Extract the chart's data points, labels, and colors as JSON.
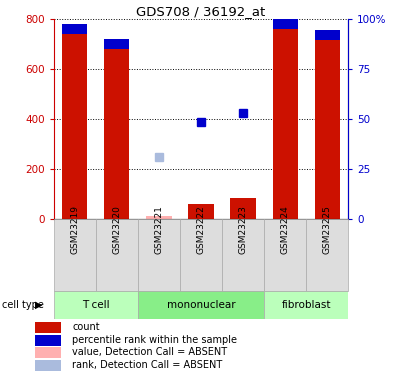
{
  "title": "GDS708 / 36192_at",
  "samples": [
    "GSM23219",
    "GSM23220",
    "GSM23221",
    "GSM23222",
    "GSM23223",
    "GSM23224",
    "GSM23225"
  ],
  "count_values": [
    780,
    720,
    0,
    60,
    85,
    800,
    755
  ],
  "rank_values": [
    710,
    695,
    0,
    0,
    0,
    710,
    710
  ],
  "absent_value_values": [
    0,
    0,
    15,
    0,
    0,
    0,
    0
  ],
  "absent_rank_values": [
    0,
    0,
    250,
    0,
    0,
    0,
    0
  ],
  "blue_dot_values": [
    0,
    0,
    0,
    390,
    425,
    0,
    0
  ],
  "cell_groups": [
    {
      "label": "T cell",
      "indices": [
        0,
        1
      ],
      "color": "#BBFFBB"
    },
    {
      "label": "mononuclear",
      "indices": [
        2,
        3,
        4
      ],
      "color": "#88EE88"
    },
    {
      "label": "fibroblast",
      "indices": [
        5,
        6
      ],
      "color": "#BBFFBB"
    }
  ],
  "ylim_max": 800,
  "y2lim_max": 100,
  "bar_width": 0.6,
  "blue_bar_height": 40,
  "count_color": "#CC1100",
  "rank_color": "#0000CC",
  "absent_value_color": "#FFB0B0",
  "absent_rank_color": "#AABBDD",
  "tick_color_left": "#CC0000",
  "tick_color_right": "#0000CC",
  "grid_linestyle": "dotted",
  "yticks": [
    0,
    200,
    400,
    600,
    800
  ],
  "y2ticks": [
    0,
    25,
    50,
    75,
    100
  ],
  "y2ticklabels": [
    "0",
    "25",
    "50",
    "75",
    "100%"
  ],
  "legend_items": [
    {
      "color": "#CC1100",
      "label": "count"
    },
    {
      "color": "#0000CC",
      "label": "percentile rank within the sample"
    },
    {
      "color": "#FFB0B0",
      "label": "value, Detection Call = ABSENT"
    },
    {
      "color": "#AABBDD",
      "label": "rank, Detection Call = ABSENT"
    }
  ],
  "cell_type_label": "cell type",
  "gsm_box_color": "#DDDDDD",
  "gsm_box_edge_color": "#AAAAAA"
}
